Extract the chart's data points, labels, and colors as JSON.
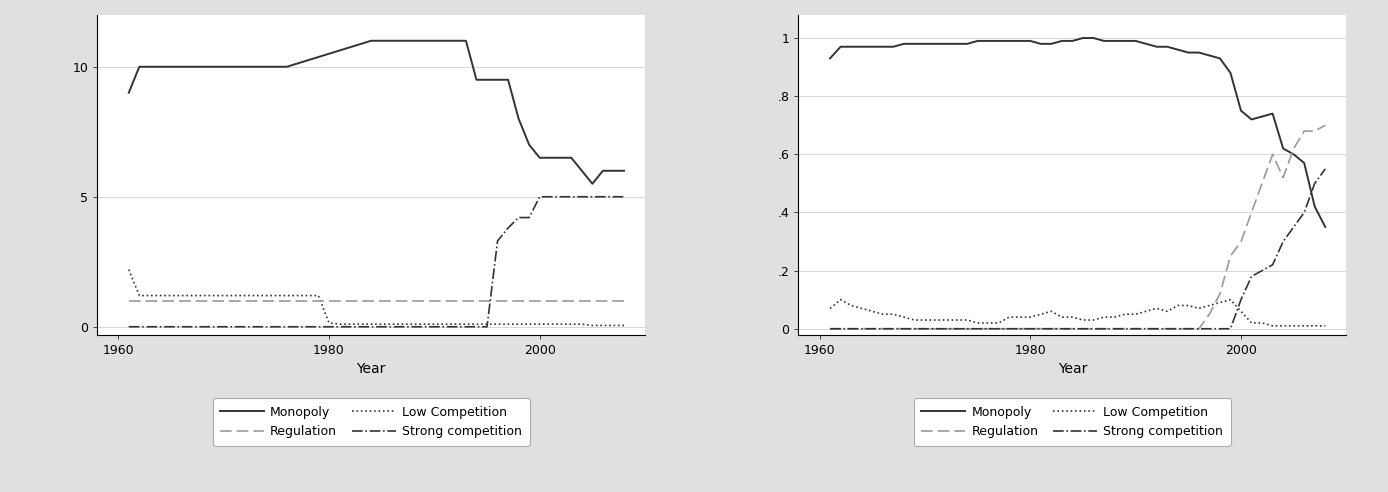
{
  "left": {
    "monopoly": {
      "x": [
        1961,
        1962,
        1975,
        1976,
        1984,
        1985,
        1993,
        1994,
        1997,
        1998,
        1999,
        2000,
        2003,
        2004,
        2005,
        2006,
        2007,
        2008
      ],
      "y": [
        9,
        10,
        10,
        10,
        11,
        11,
        11,
        9.5,
        9.5,
        8,
        7,
        6.5,
        6.5,
        6,
        5.5,
        6,
        6,
        6
      ]
    },
    "low_competition": {
      "x": [
        1961,
        1962,
        1963,
        1975,
        1979,
        1980,
        1981,
        2000,
        2001,
        2004,
        2005,
        2008
      ],
      "y": [
        2.2,
        1.2,
        1.2,
        1.2,
        1.2,
        0.15,
        0.1,
        0.1,
        0.1,
        0.1,
        0.05,
        0.05
      ]
    },
    "regulation": {
      "x": [
        1961,
        1995,
        1996,
        1999,
        2000,
        2001,
        2002,
        2003,
        2004,
        2005,
        2006,
        2007,
        2008
      ],
      "y": [
        1.0,
        1.0,
        1.0,
        1.0,
        1.0,
        1.0,
        1.0,
        1.0,
        1.0,
        1.0,
        1.0,
        1.0,
        1.0
      ]
    },
    "strong_competition": {
      "x": [
        1961,
        1994,
        1995,
        1996,
        1997,
        1998,
        1999,
        2000,
        2001,
        2002,
        2003,
        2004,
        2005,
        2006,
        2007,
        2008
      ],
      "y": [
        0,
        0,
        0,
        3.3,
        3.8,
        4.2,
        4.2,
        5,
        5,
        5,
        5,
        5,
        5,
        5,
        5,
        5
      ]
    },
    "ylim": [
      -0.3,
      12
    ],
    "yticks": [
      0,
      5,
      10
    ],
    "ytick_labels": [
      "0",
      "5",
      "10"
    ],
    "xlim": [
      1958,
      2010
    ],
    "xticks": [
      1960,
      1980,
      2000
    ],
    "xlabel": "Year"
  },
  "right": {
    "monopoly": {
      "x": [
        1961,
        1962,
        1963,
        1964,
        1965,
        1966,
        1967,
        1968,
        1969,
        1970,
        1971,
        1972,
        1973,
        1974,
        1975,
        1976,
        1977,
        1978,
        1979,
        1980,
        1981,
        1982,
        1983,
        1984,
        1985,
        1986,
        1987,
        1988,
        1989,
        1990,
        1991,
        1992,
        1993,
        1994,
        1995,
        1996,
        1997,
        1998,
        1999,
        2000,
        2001,
        2002,
        2003,
        2004,
        2005,
        2006,
        2007,
        2008
      ],
      "y": [
        0.93,
        0.97,
        0.97,
        0.97,
        0.97,
        0.97,
        0.97,
        0.98,
        0.98,
        0.98,
        0.98,
        0.98,
        0.98,
        0.98,
        0.99,
        0.99,
        0.99,
        0.99,
        0.99,
        0.99,
        0.98,
        0.98,
        0.99,
        0.99,
        1.0,
        1.0,
        0.99,
        0.99,
        0.99,
        0.99,
        0.98,
        0.97,
        0.97,
        0.96,
        0.95,
        0.95,
        0.94,
        0.93,
        0.88,
        0.75,
        0.72,
        0.73,
        0.74,
        0.62,
        0.6,
        0.57,
        0.42,
        0.35
      ]
    },
    "low_competition": {
      "x": [
        1961,
        1962,
        1963,
        1964,
        1965,
        1966,
        1967,
        1968,
        1969,
        1970,
        1971,
        1972,
        1973,
        1974,
        1975,
        1976,
        1977,
        1978,
        1979,
        1980,
        1981,
        1982,
        1983,
        1984,
        1985,
        1986,
        1987,
        1988,
        1989,
        1990,
        1991,
        1992,
        1993,
        1994,
        1995,
        1996,
        1997,
        1998,
        1999,
        2000,
        2001,
        2002,
        2003,
        2004,
        2005,
        2006,
        2007,
        2008
      ],
      "y": [
        0.07,
        0.1,
        0.08,
        0.07,
        0.06,
        0.05,
        0.05,
        0.04,
        0.03,
        0.03,
        0.03,
        0.03,
        0.03,
        0.03,
        0.02,
        0.02,
        0.02,
        0.04,
        0.04,
        0.04,
        0.05,
        0.06,
        0.04,
        0.04,
        0.03,
        0.03,
        0.04,
        0.04,
        0.05,
        0.05,
        0.06,
        0.07,
        0.06,
        0.08,
        0.08,
        0.07,
        0.08,
        0.09,
        0.1,
        0.06,
        0.02,
        0.02,
        0.01,
        0.01,
        0.01,
        0.01,
        0.01,
        0.01
      ]
    },
    "regulation": {
      "x": [
        1961,
        1962,
        1963,
        1964,
        1965,
        1966,
        1967,
        1968,
        1969,
        1970,
        1971,
        1972,
        1973,
        1974,
        1975,
        1976,
        1977,
        1978,
        1979,
        1980,
        1981,
        1982,
        1983,
        1984,
        1985,
        1986,
        1987,
        1988,
        1989,
        1990,
        1991,
        1992,
        1993,
        1994,
        1995,
        1996,
        1997,
        1998,
        1999,
        2000,
        2001,
        2002,
        2003,
        2004,
        2005,
        2006,
        2007,
        2008
      ],
      "y": [
        0.0,
        0.0,
        0.0,
        0.0,
        0.0,
        0.0,
        0.0,
        0.0,
        0.0,
        0.0,
        0.0,
        0.0,
        0.0,
        0.0,
        0.0,
        0.0,
        0.0,
        0.0,
        0.0,
        0.0,
        0.0,
        0.0,
        0.0,
        0.0,
        0.0,
        0.0,
        0.0,
        0.0,
        0.0,
        0.0,
        0.0,
        0.0,
        0.0,
        0.0,
        0.0,
        0.0,
        0.05,
        0.12,
        0.25,
        0.3,
        0.4,
        0.5,
        0.6,
        0.52,
        0.62,
        0.68,
        0.68,
        0.7
      ]
    },
    "strong_competition": {
      "x": [
        1961,
        1962,
        1963,
        1964,
        1965,
        1966,
        1967,
        1968,
        1969,
        1970,
        1971,
        1972,
        1973,
        1974,
        1975,
        1976,
        1977,
        1978,
        1979,
        1980,
        1981,
        1982,
        1983,
        1984,
        1985,
        1986,
        1987,
        1988,
        1989,
        1990,
        1991,
        1992,
        1993,
        1994,
        1995,
        1996,
        1997,
        1998,
        1999,
        2000,
        2001,
        2002,
        2003,
        2004,
        2005,
        2006,
        2007,
        2008
      ],
      "y": [
        0.0,
        0.0,
        0.0,
        0.0,
        0.0,
        0.0,
        0.0,
        0.0,
        0.0,
        0.0,
        0.0,
        0.0,
        0.0,
        0.0,
        0.0,
        0.0,
        0.0,
        0.0,
        0.0,
        0.0,
        0.0,
        0.0,
        0.0,
        0.0,
        0.0,
        0.0,
        0.0,
        0.0,
        0.0,
        0.0,
        0.0,
        0.0,
        0.0,
        0.0,
        0.0,
        0.0,
        0.0,
        0.0,
        0.0,
        0.1,
        0.18,
        0.2,
        0.22,
        0.3,
        0.35,
        0.4,
        0.5,
        0.55
      ]
    },
    "ylim": [
      -0.02,
      1.08
    ],
    "yticks": [
      0,
      0.2,
      0.4,
      0.6,
      0.8,
      1.0
    ],
    "ytick_labels": [
      "0",
      ".2",
      ".4",
      ".6",
      ".8",
      "1"
    ],
    "xlim": [
      1958,
      2010
    ],
    "xticks": [
      1960,
      1980,
      2000
    ],
    "xlabel": "Year"
  },
  "line_styles": {
    "monopoly": {
      "color": "#333333",
      "linestyle": "-",
      "linewidth": 1.4
    },
    "low_competition": {
      "color": "#333333",
      "linestyle": ":",
      "linewidth": 1.2,
      "dotsize": 1.5
    },
    "regulation": {
      "color": "#999999",
      "linestyle": "--",
      "linewidth": 1.2
    },
    "strong_competition": {
      "color": "#333333",
      "linestyle": "-.",
      "linewidth": 1.2
    }
  },
  "background_color": "#e0e0e0",
  "plot_bg_color": "#ffffff",
  "grid_color": "#d0d0d0",
  "figsize": [
    13.88,
    4.92
  ],
  "dpi": 100
}
